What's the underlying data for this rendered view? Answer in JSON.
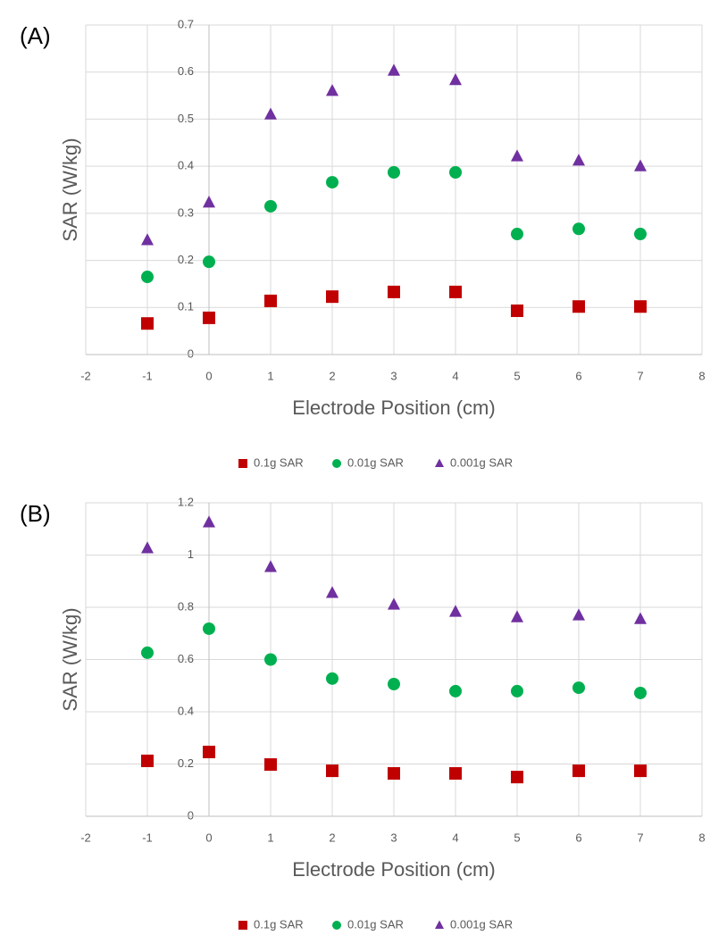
{
  "chart_data": [
    {
      "type": "scatter",
      "panel_label": "(A)",
      "x_label": "Electrode Position (cm)",
      "y_label": "SAR (W/kg)",
      "x": [
        -1,
        0,
        1,
        2,
        3,
        4,
        5,
        6,
        7
      ],
      "series": [
        {
          "name": "0.1g SAR",
          "color": "#c00000",
          "marker": "square",
          "values": [
            0.066,
            0.078,
            0.114,
            0.123,
            0.133,
            0.133,
            0.093,
            0.102,
            0.102
          ]
        },
        {
          "name": "0.01g SAR",
          "color": "#00b050",
          "marker": "circle",
          "values": [
            0.165,
            0.197,
            0.315,
            0.366,
            0.387,
            0.387,
            0.256,
            0.267,
            0.256
          ]
        },
        {
          "name": "0.001g SAR",
          "color": "#7030a0",
          "marker": "triangle",
          "values": [
            0.243,
            0.323,
            0.51,
            0.56,
            0.603,
            0.583,
            0.421,
            0.412,
            0.4
          ]
        }
      ],
      "xlim": [
        -2,
        8
      ],
      "xticks": [
        -2,
        -1,
        0,
        1,
        2,
        3,
        4,
        5,
        6,
        7,
        8
      ],
      "ylim": [
        0,
        0.7
      ],
      "yticks": [
        0,
        0.1,
        0.2,
        0.3,
        0.4,
        0.5,
        0.6,
        0.7
      ],
      "grid": true,
      "legend": "bottom"
    },
    {
      "type": "scatter",
      "panel_label": "(B)",
      "x_label": "Electrode Position (cm)",
      "y_label": "SAR (W/kg)",
      "x": [
        -1,
        0,
        1,
        2,
        3,
        4,
        5,
        6,
        7
      ],
      "series": [
        {
          "name": "0.1g SAR",
          "color": "#c00000",
          "marker": "square",
          "values": [
            0.212,
            0.246,
            0.198,
            0.174,
            0.164,
            0.164,
            0.15,
            0.174,
            0.174
          ]
        },
        {
          "name": "0.01g SAR",
          "color": "#00b050",
          "marker": "circle",
          "values": [
            0.626,
            0.718,
            0.6,
            0.527,
            0.506,
            0.479,
            0.479,
            0.492,
            0.472
          ]
        },
        {
          "name": "0.001g SAR",
          "color": "#7030a0",
          "marker": "triangle",
          "values": [
            1.026,
            1.125,
            0.954,
            0.855,
            0.81,
            0.783,
            0.762,
            0.769,
            0.755
          ]
        }
      ],
      "xlim": [
        -2,
        8
      ],
      "xticks": [
        -2,
        -1,
        0,
        1,
        2,
        3,
        4,
        5,
        6,
        7,
        8
      ],
      "ylim": [
        0,
        1.2
      ],
      "yticks": [
        0,
        0.2,
        0.4,
        0.6,
        0.8,
        1,
        1.2
      ],
      "grid": true,
      "legend": "bottom"
    }
  ]
}
